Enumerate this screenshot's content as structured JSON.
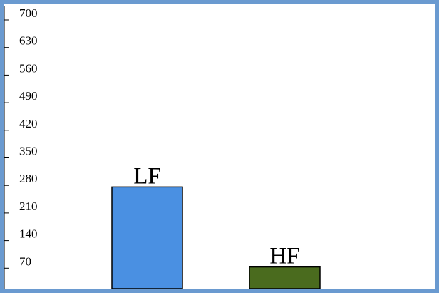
{
  "chart_data": {
    "type": "bar",
    "categories": [
      "LF",
      "HF"
    ],
    "values": [
      258,
      55
    ],
    "title": "",
    "xlabel": "",
    "ylabel": "",
    "ylim": [
      0,
      700
    ],
    "yticks": [
      "70",
      "140",
      "210",
      "280",
      "350",
      "420",
      "490",
      "560",
      "630",
      "700"
    ],
    "grid": false,
    "legend": "none",
    "data_labels": [
      "LF",
      "HF"
    ],
    "colors": {
      "bars": [
        "#4a90e2",
        "#4a6b1e"
      ],
      "frame": "#6a9ad0",
      "axis": "#000000"
    }
  }
}
